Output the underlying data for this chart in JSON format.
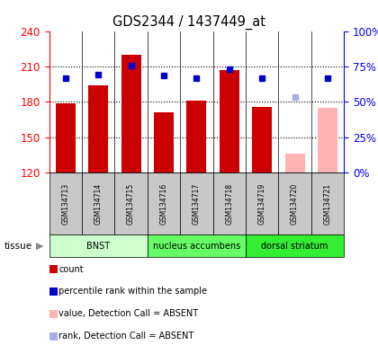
{
  "title": "GDS2344 / 1437449_at",
  "samples": [
    "GSM134713",
    "GSM134714",
    "GSM134715",
    "GSM134716",
    "GSM134717",
    "GSM134718",
    "GSM134719",
    "GSM134720",
    "GSM134721"
  ],
  "bar_values": [
    179,
    194,
    220,
    171,
    181,
    207,
    176,
    136,
    175
  ],
  "bar_colors": [
    "#cc0000",
    "#cc0000",
    "#cc0000",
    "#cc0000",
    "#cc0000",
    "#cc0000",
    "#cc0000",
    "#ffb3b3",
    "#ffb3b3"
  ],
  "rank_values_left_scale": [
    200,
    203,
    211,
    202,
    200,
    208,
    200,
    null,
    200
  ],
  "absent_rank_value_left_scale": [
    null,
    null,
    null,
    null,
    null,
    null,
    null,
    184,
    null
  ],
  "rank_colors_present": "#0000cc",
  "rank_colors_absent": "#aaaaee",
  "ylim_left": [
    120,
    240
  ],
  "ylim_right": [
    0,
    100
  ],
  "yticks_left": [
    120,
    150,
    180,
    210,
    240
  ],
  "yticks_right": [
    0,
    25,
    50,
    75,
    100
  ],
  "ytick_labels_right": [
    "0%",
    "25%",
    "50%",
    "75%",
    "100%"
  ],
  "tissue_groups": [
    {
      "label": "BNST",
      "start": 0,
      "end": 3,
      "color": "#ccffcc"
    },
    {
      "label": "nucleus accumbens",
      "start": 3,
      "end": 6,
      "color": "#66ff66"
    },
    {
      "label": "dorsal striatum",
      "start": 6,
      "end": 9,
      "color": "#33ee33"
    }
  ],
  "legend_items": [
    {
      "color": "#cc0000",
      "label": "count",
      "square": true
    },
    {
      "color": "#0000cc",
      "label": "percentile rank within the sample",
      "square": true
    },
    {
      "color": "#ffb3b3",
      "label": "value, Detection Call = ABSENT",
      "square": true
    },
    {
      "color": "#aaaaee",
      "label": "rank, Detection Call = ABSENT",
      "square": true
    }
  ]
}
